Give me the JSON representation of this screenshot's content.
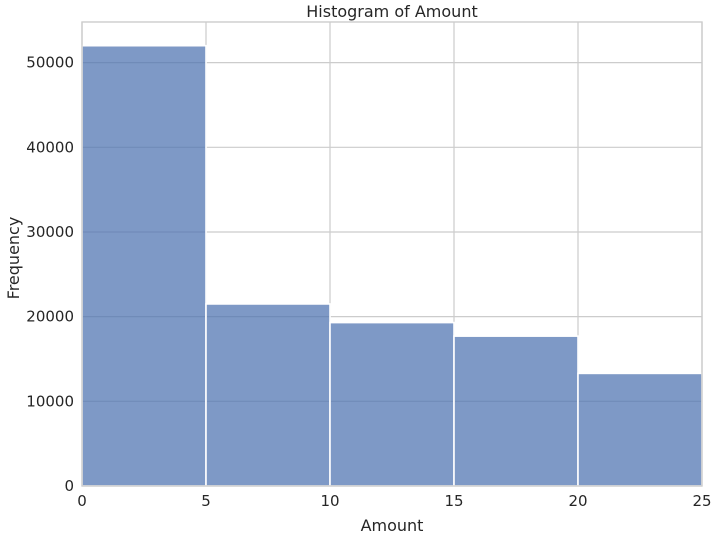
{
  "chart_data": {
    "type": "bar",
    "title": "Histogram of Amount",
    "xlabel": "Amount",
    "ylabel": "Frequency",
    "bin_edges": [
      0,
      5,
      10,
      15,
      20,
      25
    ],
    "values": [
      52000,
      21500,
      19300,
      17700,
      13300
    ],
    "xlim": [
      0,
      25
    ],
    "ylim": [
      0,
      54800
    ],
    "x_ticks": [
      0,
      5,
      10,
      15,
      20,
      25
    ],
    "y_ticks": [
      0,
      10000,
      20000,
      30000,
      40000,
      50000
    ],
    "grid": true,
    "bar_color": "#4c72b0",
    "bar_opacity": 0.72,
    "grid_color": "#cccccc",
    "spine_color": "#cccccc"
  }
}
